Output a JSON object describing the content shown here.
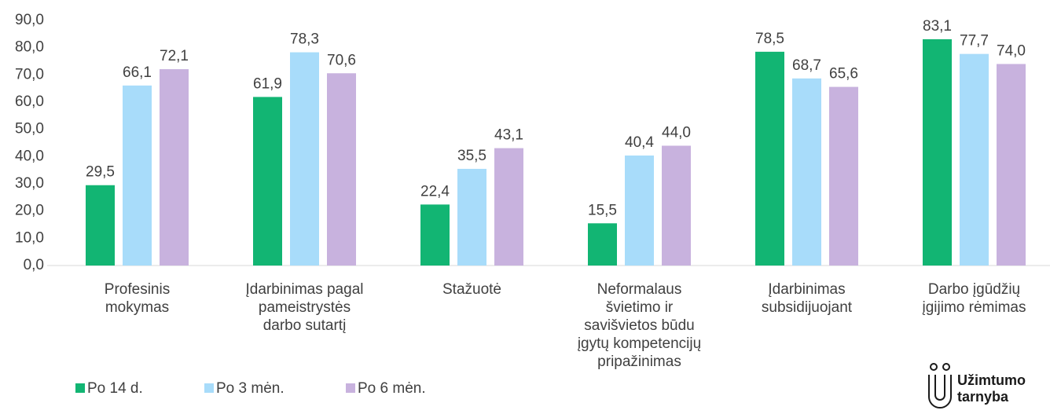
{
  "chart_data": {
    "type": "bar",
    "categories": [
      [
        "Profesinis",
        "mokymas"
      ],
      [
        "Įdarbinimas pagal",
        "pameistrystės",
        "darbo sutartį"
      ],
      [
        "Stažuotė"
      ],
      [
        "Neformalaus",
        "švietimo ir",
        "savišvietos būdu",
        "įgytų kompetencijų",
        "pripažinimas"
      ],
      [
        "Įdarbinimas",
        "subsidijuojant"
      ],
      [
        "Darbo įgūdžių",
        "įgijimo rėmimas"
      ]
    ],
    "series": [
      {
        "name": "Po 14 d.",
        "color": "#12b573",
        "values": [
          29.5,
          61.9,
          22.4,
          15.5,
          78.5,
          83.1
        ],
        "value_labels": [
          "29,5",
          "61,9",
          "22,4",
          "15,5",
          "78,5",
          "83,1"
        ]
      },
      {
        "name": "Po 3 mėn.",
        "color": "#a8dcfa",
        "values": [
          66.1,
          78.3,
          35.5,
          40.4,
          68.7,
          77.7
        ],
        "value_labels": [
          "66,1",
          "78,3",
          "35,5",
          "40,4",
          "68,7",
          "77,7"
        ]
      },
      {
        "name": "Po 6 mėn.",
        "color": "#c8b2de",
        "values": [
          72.1,
          70.6,
          43.1,
          44.0,
          65.6,
          74.0
        ],
        "value_labels": [
          "72,1",
          "70,6",
          "43,1",
          "44,0",
          "65,6",
          "74,0"
        ]
      }
    ],
    "ylim": [
      0,
      90
    ],
    "yticks": [
      {
        "value": 0,
        "label": "0,0"
      },
      {
        "value": 10,
        "label": "10,0"
      },
      {
        "value": 20,
        "label": "20,0"
      },
      {
        "value": 30,
        "label": "30,0"
      },
      {
        "value": 40,
        "label": "40,0"
      },
      {
        "value": 50,
        "label": "50,0"
      },
      {
        "value": 60,
        "label": "60,0"
      },
      {
        "value": 70,
        "label": "70,0"
      },
      {
        "value": 80,
        "label": "80,0"
      },
      {
        "value": 90,
        "label": "90,0"
      }
    ],
    "grid": false,
    "legend": "bottom-left"
  },
  "logo": [
    "Užimtumo",
    "tarnyba"
  ]
}
